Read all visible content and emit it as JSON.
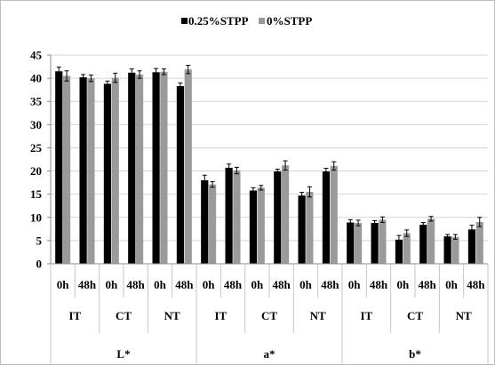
{
  "chart_data": {
    "type": "bar",
    "title": "",
    "xlabel": "",
    "ylabel": "",
    "ylim": [
      0,
      45
    ],
    "yticks": [
      0,
      5,
      10,
      15,
      20,
      25,
      30,
      35,
      40,
      45
    ],
    "grid": true,
    "legend_position": "top",
    "super_groups": [
      "L*",
      "a*",
      "b*"
    ],
    "groups": [
      "IT",
      "CT",
      "NT"
    ],
    "times": [
      "0h",
      "48h"
    ],
    "categories": [
      "L* IT 0h",
      "L* IT 48h",
      "L* CT 0h",
      "L* CT 48h",
      "L* NT 0h",
      "L* NT 48h",
      "a* IT 0h",
      "a* IT 48h",
      "a* CT 0h",
      "a* CT 48h",
      "a* NT 0h",
      "a* NT 48h",
      "b* IT 0h",
      "b* IT 48h",
      "b* CT 0h",
      "b* CT 48h",
      "b* NT 0h",
      "b* NT 48h"
    ],
    "series": [
      {
        "name": "0.25%STPP",
        "color": "#000000",
        "values": [
          41.5,
          40.2,
          38.8,
          41.2,
          41.3,
          38.3,
          18.0,
          20.7,
          15.8,
          19.9,
          14.7,
          19.9,
          8.9,
          8.8,
          5.2,
          8.4,
          5.9,
          7.4
        ],
        "errors": [
          0.9,
          0.6,
          0.6,
          0.8,
          0.8,
          0.7,
          1.1,
          0.8,
          0.6,
          0.5,
          0.7,
          0.7,
          0.6,
          0.5,
          0.9,
          0.5,
          0.4,
          0.9
        ]
      },
      {
        "name": "0%STPP",
        "color": "#9a9a9a",
        "values": [
          40.5,
          40.0,
          40.1,
          40.8,
          41.4,
          41.9,
          17.1,
          20.1,
          16.4,
          21.2,
          15.5,
          21.1,
          8.8,
          9.5,
          6.6,
          9.7,
          5.8,
          9.0
        ],
        "errors": [
          1.1,
          0.7,
          1.0,
          0.8,
          0.6,
          0.9,
          0.6,
          0.7,
          0.5,
          1.0,
          1.1,
          0.9,
          0.6,
          0.6,
          0.7,
          0.5,
          0.5,
          1.0
        ]
      }
    ]
  }
}
